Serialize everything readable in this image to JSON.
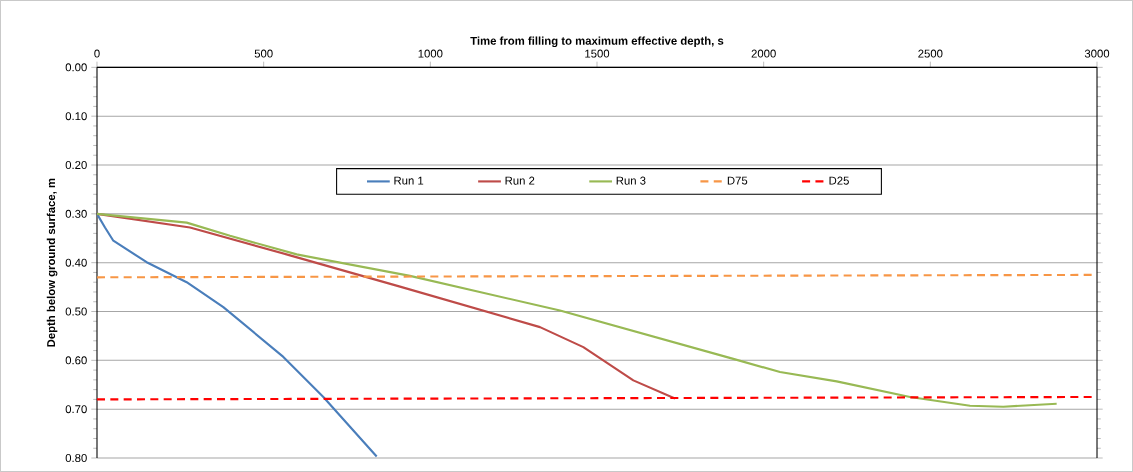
{
  "chart_data": {
    "type": "line",
    "xlabel": "Time from filling to maximum effective depth, s",
    "ylabel": "Depth below ground surface, m",
    "xlim": [
      0,
      3000
    ],
    "xticks": [
      0,
      500,
      1000,
      1500,
      2000,
      2500,
      3000
    ],
    "ylim": [
      0.8,
      0
    ],
    "yticks": [
      {
        "value": 0,
        "label": "0.00"
      },
      {
        "value": 0.1,
        "label": "0.10"
      },
      {
        "value": 0.2,
        "label": "0.20"
      },
      {
        "value": 0.3,
        "label": "0.30"
      },
      {
        "value": 0.4,
        "label": "0.40"
      },
      {
        "value": 0.5,
        "label": "0.50"
      },
      {
        "value": 0.6,
        "label": "0.60"
      },
      {
        "value": 0.7,
        "label": "0.70"
      },
      {
        "value": 0.8,
        "label": "0.80"
      }
    ],
    "grid": "y",
    "legend": "top",
    "line_style": "solid",
    "marker": "none",
    "series": [
      {
        "name": "Run 1",
        "color": "#4a7ebb",
        "x": [
          0,
          24,
          49,
          149,
          269,
          379,
          559,
          679,
          839
        ],
        "values": [
          0.3,
          0.328,
          0.355,
          0.399,
          0.44,
          0.491,
          0.593,
          0.675,
          0.797
        ]
      },
      {
        "name": "Run 2",
        "color": "#be4b48",
        "x": [
          0,
          279,
          579,
          909,
          1329,
          1459,
          1609,
          1734
        ],
        "values": [
          0.3,
          0.328,
          0.385,
          0.449,
          0.532,
          0.573,
          0.641,
          0.678
        ]
      },
      {
        "name": "Run 3",
        "color": "#98b954",
        "x": [
          0,
          269,
          399,
          599,
          939,
          1389,
          1909,
          2049,
          2219,
          2439,
          2619,
          2719,
          2879
        ],
        "values": [
          0.3,
          0.318,
          0.345,
          0.383,
          0.427,
          0.498,
          0.597,
          0.624,
          0.643,
          0.675,
          0.693,
          0.695,
          0.689
        ]
      },
      {
        "name": "D75",
        "color": "#f79646",
        "line_style": "dashed",
        "x": [
          0,
          3000
        ],
        "values": [
          0.43,
          0.425
        ]
      },
      {
        "name": "D25",
        "color": "#ff0000",
        "line_style": "dashed",
        "x": [
          0,
          3000
        ],
        "values": [
          0.68,
          0.675
        ]
      }
    ]
  }
}
